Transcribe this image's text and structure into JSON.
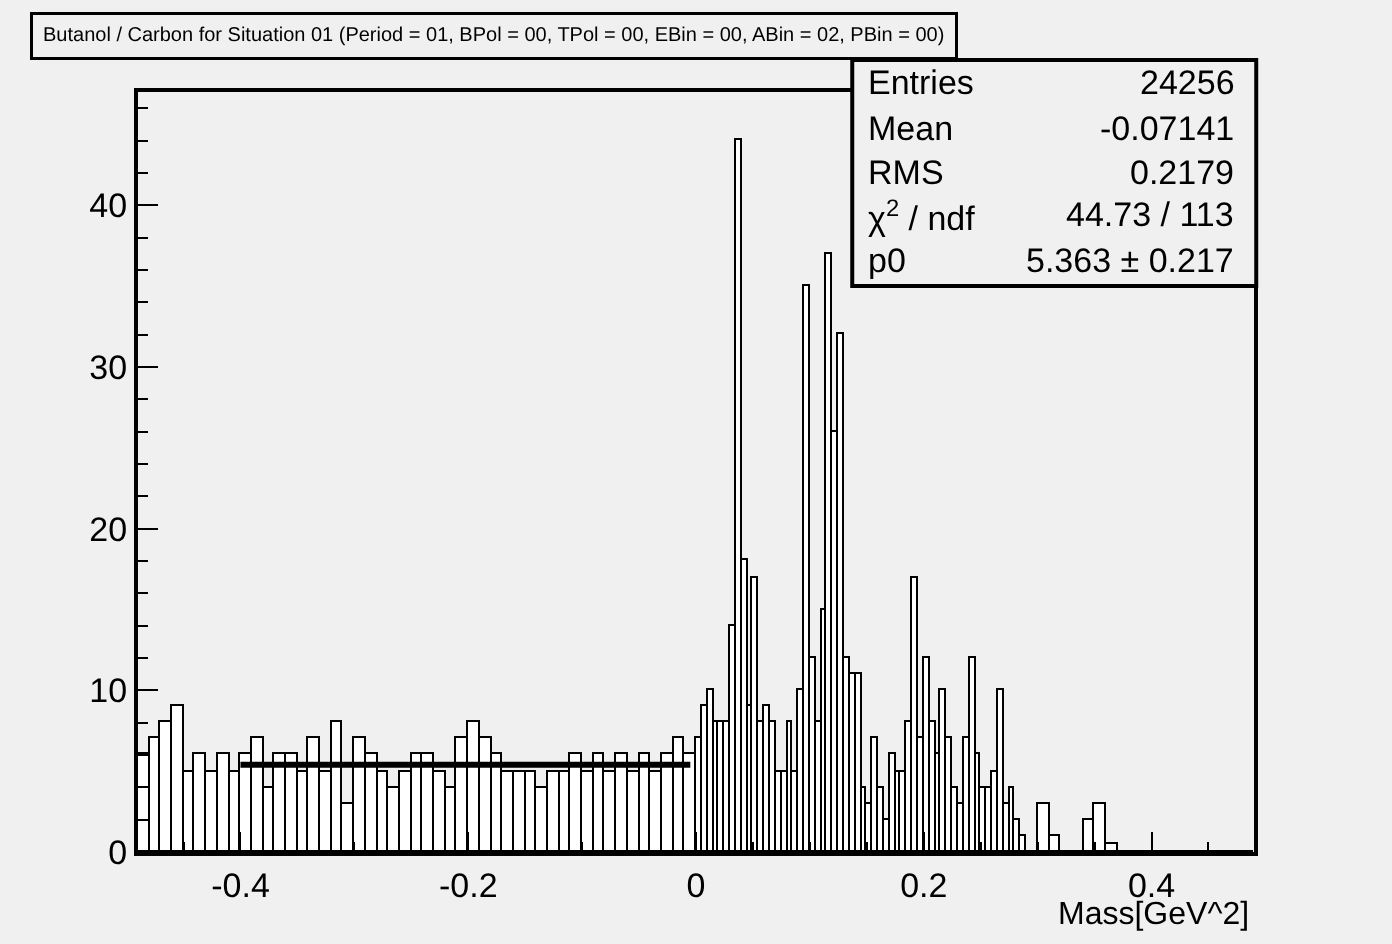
{
  "chart_data": {
    "type": "histogram",
    "title": "Butanol / Carbon for Situation 01 (Period = 01, BPol = 00, TPol = 00, EBin = 00, ABin = 02, PBin = 00)",
    "xlabel": "Mass[GeV^2]",
    "bins": [
      -0.49,
      -0.48,
      -0.47,
      -0.46,
      -0.45,
      -0.44,
      -0.43,
      -0.42,
      -0.41,
      -0.4,
      -0.39,
      -0.38,
      -0.37,
      -0.36,
      -0.35,
      -0.34,
      -0.33,
      -0.32,
      -0.31,
      -0.3,
      -0.29,
      -0.28,
      -0.27,
      -0.26,
      -0.25,
      -0.24,
      -0.23,
      -0.22,
      -0.21,
      -0.2,
      -0.19,
      -0.18,
      -0.17,
      -0.16,
      -0.15,
      -0.14,
      -0.13,
      -0.12,
      -0.11,
      -0.1,
      -0.09,
      -0.08,
      -0.07,
      -0.06,
      -0.05,
      -0.04,
      -0.03,
      -0.02,
      -0.01,
      0.0,
      0.005,
      0.01,
      0.015,
      0.02,
      0.025,
      0.03,
      0.035,
      0.04,
      0.045,
      0.05,
      0.055,
      0.06,
      0.065,
      0.07,
      0.075,
      0.08,
      0.085,
      0.09,
      0.095,
      0.1,
      0.105,
      0.11,
      0.115,
      0.12,
      0.125,
      0.13,
      0.135,
      0.14,
      0.145,
      0.15,
      0.155,
      0.16,
      0.165,
      0.17,
      0.175,
      0.18,
      0.185,
      0.19,
      0.195,
      0.2,
      0.205,
      0.21,
      0.215,
      0.22,
      0.225,
      0.23,
      0.235,
      0.24,
      0.245,
      0.25,
      0.255,
      0.26,
      0.265,
      0.27,
      0.275,
      0.28,
      0.285,
      0.29,
      0.295,
      0.3,
      0.31,
      0.32,
      0.33,
      0.34,
      0.35,
      0.36,
      0.37,
      0.38,
      0.39,
      0.4,
      0.41,
      0.42,
      0.43,
      0.44,
      0.45,
      0.46,
      0.47,
      0.48,
      0.49
    ],
    "values": [
      6,
      7,
      8,
      9,
      5,
      6,
      5,
      6,
      5,
      6,
      7,
      4,
      6,
      6,
      5,
      7,
      5,
      8,
      3,
      7,
      6,
      5,
      4,
      5,
      6,
      6,
      5,
      4,
      7,
      8,
      7,
      6,
      5,
      5,
      5,
      4,
      5,
      5,
      6,
      5,
      6,
      5,
      6,
      5,
      6,
      5,
      6,
      7,
      6,
      7,
      9,
      10,
      8,
      8,
      8,
      14,
      44,
      18,
      9,
      17,
      8,
      9,
      8,
      5,
      5,
      8,
      5,
      10,
      35,
      12,
      8,
      15,
      37,
      26,
      32,
      12,
      11,
      11,
      4,
      3,
      7,
      4,
      2,
      6,
      5,
      5,
      8,
      17,
      7,
      12,
      8,
      6,
      10,
      7,
      4,
      3,
      7,
      12,
      6,
      4,
      4,
      5,
      10,
      3,
      4,
      2,
      1,
      0,
      0,
      3,
      1,
      0,
      0,
      2,
      3,
      0.5,
      0,
      0,
      0,
      0,
      0,
      0,
      0,
      0,
      0,
      0,
      0,
      0
    ],
    "color": "#000000",
    "series": [
      {
        "type": "line",
        "x": [
          -0.4,
          -0.005
        ],
        "values": [
          5.4,
          5.4
        ],
        "color": "#000000"
      }
    ],
    "xlim": [
      -0.49,
      0.49
    ],
    "ylim": [
      0,
      47
    ],
    "xticks": [
      -0.4,
      -0.2,
      0,
      0.2,
      0.4
    ],
    "yticks": [
      0,
      10,
      20,
      30,
      40
    ],
    "grid": false,
    "annotations": [
      "Entries",
      "24256",
      "Mean",
      "-0.07141",
      "RMS",
      "0.2179",
      "χ$^{2}$ / ndf",
      "44.73 / 113",
      "p0",
      "5.363 ± 0.217"
    ]
  }
}
